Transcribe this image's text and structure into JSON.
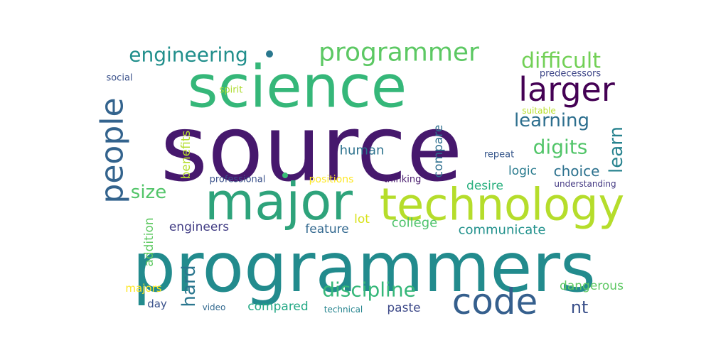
{
  "words": [
    {
      "text": "source",
      "color": "#46186d"
    },
    {
      "text": "programmers",
      "color": "#228b8d"
    },
    {
      "text": "science",
      "color": "#35b779"
    },
    {
      "text": "major",
      "color": "#2ea37b"
    },
    {
      "text": "technology",
      "color": "#b5dd2b"
    },
    {
      "text": "people",
      "color": "#33638d"
    },
    {
      "text": "code",
      "color": "#355f8d"
    },
    {
      "text": "larger",
      "color": "#440154"
    },
    {
      "text": "programmer",
      "color": "#5cc863"
    },
    {
      "text": "engineering",
      "color": "#218f8c"
    },
    {
      "text": "difficult",
      "color": "#72d056"
    },
    {
      "text": "discipline",
      "color": "#35b779"
    },
    {
      "text": "digits",
      "color": "#52c569"
    },
    {
      "text": "learning",
      "color": "#2d6f8e"
    },
    {
      "text": "learn",
      "color": "#26828e"
    },
    {
      "text": "hard",
      "color": "#2a768e"
    },
    {
      "text": "size",
      "color": "#52c569"
    },
    {
      "text": "choice",
      "color": "#2c718e"
    },
    {
      "text": "nt",
      "color": "#3b518b"
    },
    {
      "text": "human",
      "color": "#2c728e"
    },
    {
      "text": "logic",
      "color": "#297b8e"
    },
    {
      "text": "compare",
      "color": "#2d6f8e"
    },
    {
      "text": "college",
      "color": "#4ec36b"
    },
    {
      "text": "communicate",
      "color": "#21918c"
    },
    {
      "text": "engineers",
      "color": "#433e85"
    },
    {
      "text": "feature",
      "color": "#31678e"
    },
    {
      "text": "lot",
      "color": "#d8e219"
    },
    {
      "text": "desire",
      "color": "#2ab07f"
    },
    {
      "text": "benefits",
      "color": "#b4de2c"
    },
    {
      "text": "addition",
      "color": "#5ec962"
    },
    {
      "text": "majors",
      "color": "#fde725"
    },
    {
      "text": "dangerous",
      "color": "#5dc863"
    },
    {
      "text": "compared",
      "color": "#22a884"
    },
    {
      "text": "paste",
      "color": "#3e4a89"
    },
    {
      "text": "day",
      "color": "#3b528b"
    },
    {
      "text": "positions",
      "color": "#fde725"
    },
    {
      "text": "professional",
      "color": "#3b528b"
    },
    {
      "text": "thinking",
      "color": "#481b6d"
    },
    {
      "text": "understanding",
      "color": "#443983"
    },
    {
      "text": "repeat",
      "color": "#38588c"
    },
    {
      "text": "suitable",
      "color": "#b8de29"
    },
    {
      "text": "predecessors",
      "color": "#3f4788"
    },
    {
      "text": "spirit",
      "color": "#addc30"
    },
    {
      "text": "social",
      "color": "#3b528b"
    },
    {
      "text": "video",
      "color": "#31688e"
    },
    {
      "text": "technical",
      "color": "#25848e"
    }
  ]
}
